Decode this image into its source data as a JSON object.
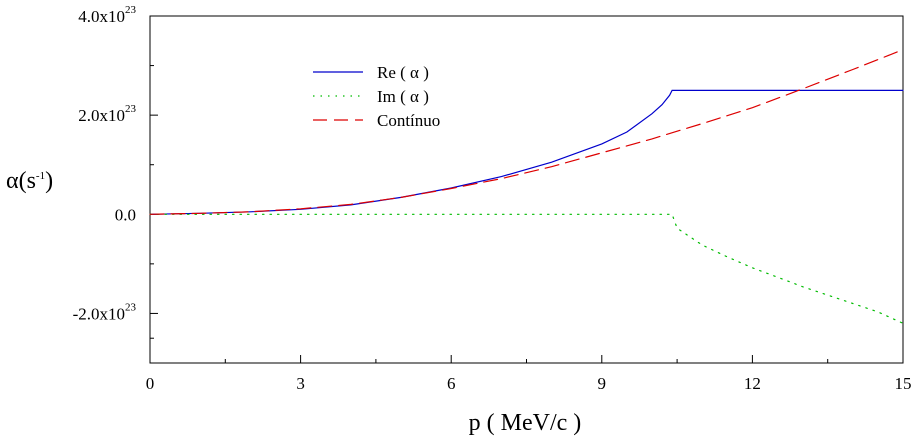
{
  "chart_data": {
    "type": "line",
    "title": "",
    "xlabel": "p ( MeV/c )",
    "ylabel": "α(s⁻¹)",
    "ylabel_base": "α(s",
    "ylabel_sup": "-1",
    "ylabel_close": ")",
    "xlim": [
      0,
      15
    ],
    "ylim": [
      -3e+23,
      4e+23
    ],
    "x_ticks": [
      {
        "value": 0,
        "label": "0"
      },
      {
        "value": 3,
        "label": "3"
      },
      {
        "value": 6,
        "label": "6"
      },
      {
        "value": 9,
        "label": "9"
      },
      {
        "value": 12,
        "label": "12"
      },
      {
        "value": 15,
        "label": "15"
      }
    ],
    "y_ticks": [
      {
        "value": 4e+23,
        "mantissa": "4.0x10",
        "exponent": "23"
      },
      {
        "value": 2e+23,
        "mantissa": "2.0x10",
        "exponent": "23"
      },
      {
        "value": 0.0,
        "mantissa": "0.0",
        "exponent": ""
      },
      {
        "value": -2e+23,
        "mantissa": "-2.0x10",
        "exponent": "23"
      }
    ],
    "grid": false,
    "legend_position": "top-left",
    "series": [
      {
        "name": "Re ( α )",
        "color": "#0000cc",
        "style": "solid",
        "x": [
          0,
          1,
          2,
          3,
          4,
          5,
          6,
          7,
          8,
          9,
          9.5,
          10,
          10.2,
          10.35,
          10.4,
          11,
          12,
          13,
          14,
          15
        ],
        "y": [
          0,
          2e+21,
          5e+21,
          1e+22,
          1.9e+22,
          3.4e+22,
          5.3e+22,
          7.6e+22,
          1.05e+23,
          1.42e+23,
          1.66e+23,
          2.03e+23,
          2.21e+23,
          2.4e+23,
          2.5e+23,
          2.5e+23,
          2.5e+23,
          2.5e+23,
          2.5e+23,
          2.5e+23
        ]
      },
      {
        "name": "Im ( α )",
        "color": "#00bb00",
        "style": "dotted",
        "x": [
          0,
          2,
          4,
          6,
          8,
          10,
          10.4,
          10.5,
          11,
          11.5,
          12,
          12.5,
          13,
          13.5,
          14,
          14.5,
          15
        ],
        "y": [
          0,
          0,
          0,
          0,
          0,
          0,
          0,
          -2.8e+22,
          -6.2e+22,
          -8.6e+22,
          -1.08e+23,
          -1.27e+23,
          -1.46e+23,
          -1.63e+23,
          -1.8e+23,
          -1.97e+23,
          -2.2e+23
        ]
      },
      {
        "name": "Contínuo",
        "color": "#dd0000",
        "style": "dashed",
        "x": [
          0,
          1,
          2,
          3,
          4,
          5,
          6,
          7,
          8,
          9,
          10,
          11,
          12,
          13,
          14,
          15
        ],
        "y": [
          0,
          2e+21,
          5e+21,
          1.1e+22,
          2e+22,
          3.4e+22,
          5.2e+22,
          7.2e+22,
          9.6e+22,
          1.24e+23,
          1.52e+23,
          1.83e+23,
          2.15e+23,
          2.53e+23,
          2.92e+23,
          3.32e+23
        ]
      }
    ]
  }
}
